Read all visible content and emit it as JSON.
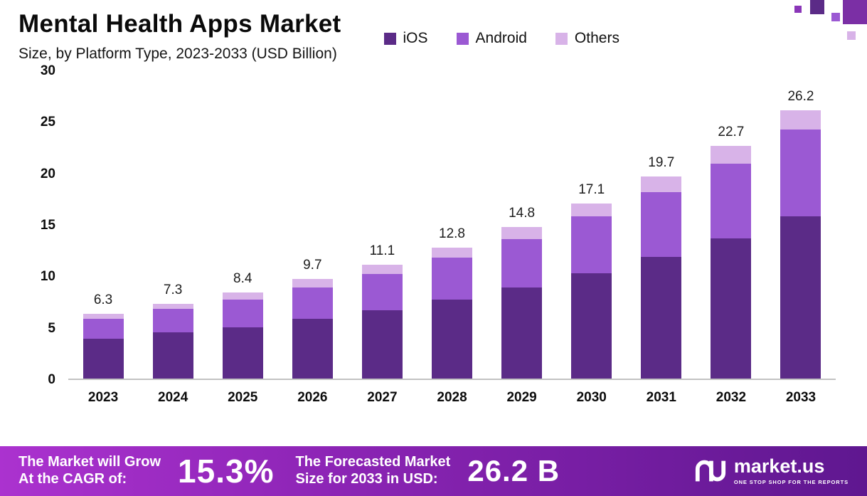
{
  "title": "Mental Health Apps Market",
  "subtitle": "Size, by Platform Type, 2023-2033 (USD Billion)",
  "legend": [
    {
      "label": "iOS",
      "color": "#5b2b87"
    },
    {
      "label": "Android",
      "color": "#9b59d3"
    },
    {
      "label": "Others",
      "color": "#d8b3e8"
    }
  ],
  "chart_data": {
    "type": "bar",
    "stacked": true,
    "title": "Mental Health Apps Market Size, by Platform Type, 2023-2033 (USD Billion)",
    "categories": [
      "2023",
      "2024",
      "2025",
      "2026",
      "2027",
      "2028",
      "2029",
      "2030",
      "2031",
      "2032",
      "2033"
    ],
    "series": [
      {
        "name": "iOS",
        "color": "#5b2b87",
        "values": [
          3.9,
          4.5,
          5.0,
          5.8,
          6.7,
          7.7,
          8.9,
          10.3,
          11.9,
          13.7,
          15.8
        ]
      },
      {
        "name": "Android",
        "color": "#9b59d3",
        "values": [
          1.9,
          2.3,
          2.7,
          3.1,
          3.5,
          4.1,
          4.7,
          5.5,
          6.3,
          7.3,
          8.5
        ]
      },
      {
        "name": "Others",
        "color": "#d8b3e8",
        "values": [
          0.5,
          0.5,
          0.7,
          0.8,
          0.9,
          1.0,
          1.2,
          1.3,
          1.5,
          1.7,
          1.9
        ]
      }
    ],
    "totals": [
      6.3,
      7.3,
      8.4,
      9.7,
      11.1,
      12.8,
      14.8,
      17.1,
      19.7,
      22.7,
      26.2
    ],
    "y_ticks": [
      0,
      5,
      10,
      15,
      20,
      25,
      30
    ],
    "ylim": [
      0,
      30
    ],
    "xlabel": "",
    "ylabel": "",
    "grid": false,
    "legend_position": "top-right"
  },
  "banner": {
    "cagr_label_line1": "The Market will Grow",
    "cagr_label_line2": "At the CAGR of:",
    "cagr_value": "15.3%",
    "forecast_label_line1": "The Forecasted Market",
    "forecast_label_line2": "Size for 2033 in USD:",
    "forecast_value": "26.2 B",
    "logo_text": "market.us",
    "logo_tagline": "ONE STOP SHOP FOR THE REPORTS"
  }
}
